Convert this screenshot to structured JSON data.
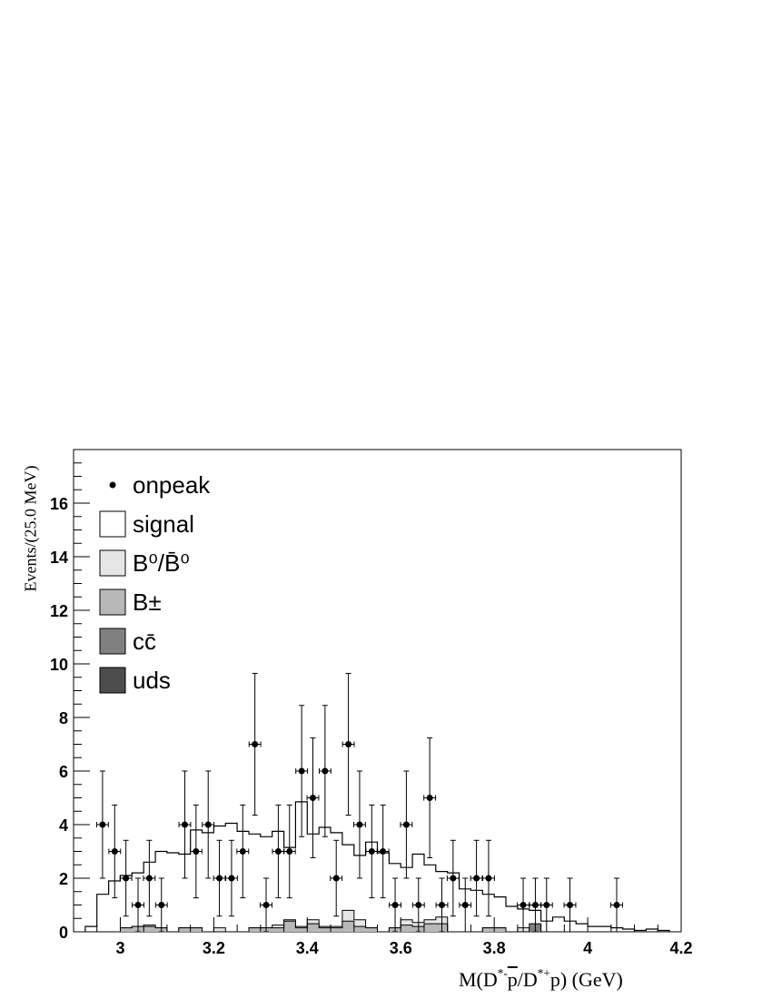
{
  "chart_data": {
    "type": "histogram",
    "xlabel": {
      "pre": "M(D",
      "sup1": "*-",
      "bar": "p",
      "mid": "/D",
      "sup2": "*+",
      "post": "p) (GeV)"
    },
    "ylabel": "Events/(25.0 MeV)",
    "xlim": [
      2.9,
      4.2
    ],
    "ylim": [
      0,
      18
    ],
    "bin_width": 0.025,
    "x_ticks": [
      "3",
      "3.2",
      "3.4",
      "3.6",
      "3.8",
      "4",
      "4.2"
    ],
    "y_ticks": [
      "0",
      "2",
      "4",
      "6",
      "8",
      "10",
      "12",
      "14",
      "16"
    ],
    "legend_position": "top-left",
    "legend": [
      {
        "label": "onpeak",
        "style": "marker"
      },
      {
        "label": "signal",
        "fill": "#ffffff"
      },
      {
        "label": "B⁰/B̄⁰",
        "fill": "#e6e6e6"
      },
      {
        "label": "B±",
        "fill": "#b8b8b8"
      },
      {
        "label": "cc̄",
        "fill": "#808080"
      },
      {
        "label": "uds",
        "fill": "#4d4d4d"
      }
    ],
    "onpeak": {
      "x": [
        2.962,
        2.988,
        3.012,
        3.038,
        3.062,
        3.088,
        3.138,
        3.162,
        3.188,
        3.212,
        3.238,
        3.262,
        3.288,
        3.312,
        3.338,
        3.362,
        3.388,
        3.412,
        3.438,
        3.462,
        3.488,
        3.512,
        3.538,
        3.562,
        3.588,
        3.612,
        3.638,
        3.662,
        3.688,
        3.712,
        3.738,
        3.762,
        3.788,
        3.862,
        3.888,
        3.912,
        3.962,
        4.062
      ],
      "y": [
        4,
        3,
        2,
        1,
        2,
        1,
        4,
        3,
        4,
        2,
        2,
        3,
        7,
        1,
        3,
        3,
        6,
        5,
        6,
        2,
        7,
        4,
        3,
        3,
        1,
        4,
        1,
        5,
        1,
        2,
        1,
        2,
        2,
        1,
        1,
        1,
        1,
        1
      ]
    },
    "signal": {
      "x": [
        2.925,
        2.95,
        2.975,
        3.0,
        3.025,
        3.05,
        3.075,
        3.1,
        3.125,
        3.15,
        3.175,
        3.2,
        3.225,
        3.25,
        3.275,
        3.3,
        3.325,
        3.35,
        3.375,
        3.4,
        3.425,
        3.45,
        3.475,
        3.5,
        3.525,
        3.55,
        3.575,
        3.6,
        3.625,
        3.65,
        3.675,
        3.7,
        3.725,
        3.75,
        3.775,
        3.8,
        3.825,
        3.85,
        3.875,
        3.9,
        3.925,
        3.95,
        3.975,
        4.0,
        4.025,
        4.05,
        4.075,
        4.1,
        4.125,
        4.15
      ],
      "y": [
        0.2,
        1.4,
        1.9,
        2.1,
        2.2,
        2.6,
        3.0,
        2.95,
        2.9,
        3.8,
        3.7,
        3.95,
        4.05,
        3.75,
        3.65,
        3.55,
        3.75,
        3.15,
        4.85,
        3.65,
        3.9,
        3.7,
        3.25,
        2.85,
        3.35,
        2.95,
        2.55,
        2.4,
        2.9,
        2.5,
        2.25,
        2.2,
        1.6,
        1.55,
        1.4,
        1.3,
        0.95,
        0.85,
        0.8,
        0.4,
        0.55,
        0.4,
        0.3,
        0.2,
        0.2,
        0.15,
        0.1,
        0.05,
        0.1,
        0.05
      ]
    },
    "B0": {
      "x": [
        3.0,
        3.025,
        3.05,
        3.075,
        3.125,
        3.15,
        3.2,
        3.275,
        3.3,
        3.325,
        3.35,
        3.375,
        3.4,
        3.425,
        3.45,
        3.475,
        3.5,
        3.525,
        3.575,
        3.6,
        3.625,
        3.65,
        3.675,
        3.775,
        3.8,
        3.85
      ],
      "y": [
        0.15,
        0.2,
        0.25,
        0.15,
        0.15,
        0.15,
        0.15,
        0.15,
        0.15,
        0.25,
        0.45,
        0.2,
        0.45,
        0.2,
        0.2,
        0.8,
        0.45,
        0.15,
        0.15,
        0.45,
        0.35,
        0.45,
        0.55,
        0.15,
        0.15,
        0.15
      ]
    },
    "Bpm": {
      "x": [
        3.0,
        3.025,
        3.05,
        3.075,
        3.125,
        3.15,
        3.2,
        3.275,
        3.3,
        3.325,
        3.35,
        3.375,
        3.4,
        3.425,
        3.45,
        3.475,
        3.5,
        3.525,
        3.575,
        3.6,
        3.625,
        3.65,
        3.675,
        3.775,
        3.8,
        3.85
      ],
      "y": [
        0.15,
        0.2,
        0.2,
        0.15,
        0.15,
        0.15,
        0.0,
        0.15,
        0.15,
        0.15,
        0.4,
        0.15,
        0.3,
        0.15,
        0.15,
        0.4,
        0.2,
        0.15,
        0.15,
        0.25,
        0.2,
        0.3,
        0.3,
        0.15,
        0.15,
        0.0
      ]
    },
    "ccbar": {
      "x": [
        3.875
      ],
      "y": [
        0.3
      ]
    },
    "uds": {
      "x": [],
      "y": []
    }
  }
}
